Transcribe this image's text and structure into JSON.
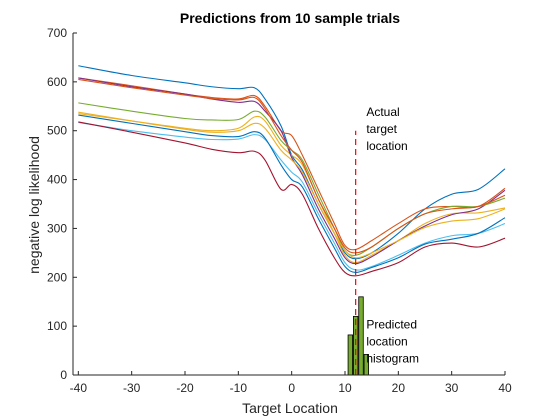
{
  "chart_data": {
    "type": "line",
    "title": "Predictions from 10 sample trials",
    "xlabel": "Target Location",
    "ylabel": "negative log likelihood",
    "xlim": [
      -41,
      40
    ],
    "ylim": [
      0,
      700
    ],
    "xticks": [
      -40,
      -30,
      -20,
      -10,
      0,
      10,
      20,
      30,
      40
    ],
    "yticks": [
      0,
      100,
      200,
      300,
      400,
      500,
      600,
      700
    ],
    "grid": false,
    "series": [
      {
        "color": "#0072BD",
        "points": [
          [
            -40,
            633
          ],
          [
            -30,
            613
          ],
          [
            -20,
            598
          ],
          [
            -15,
            590
          ],
          [
            -10,
            586
          ],
          [
            -7,
            588
          ],
          [
            -5,
            565
          ],
          [
            -2,
            510
          ],
          [
            0,
            450
          ],
          [
            2,
            420
          ],
          [
            5,
            350
          ],
          [
            8,
            290
          ],
          [
            10,
            250
          ],
          [
            12,
            238
          ],
          [
            15,
            250
          ],
          [
            20,
            290
          ],
          [
            25,
            340
          ],
          [
            30,
            370
          ],
          [
            35,
            380
          ],
          [
            40,
            422
          ]
        ]
      },
      {
        "color": "#D95319",
        "points": [
          [
            -40,
            608
          ],
          [
            -30,
            592
          ],
          [
            -20,
            575
          ],
          [
            -15,
            568
          ],
          [
            -10,
            565
          ],
          [
            -7,
            572
          ],
          [
            -5,
            550
          ],
          [
            -2,
            500
          ],
          [
            0,
            490
          ],
          [
            2,
            450
          ],
          [
            5,
            380
          ],
          [
            8,
            310
          ],
          [
            10,
            265
          ],
          [
            12,
            257
          ],
          [
            15,
            275
          ],
          [
            20,
            310
          ],
          [
            25,
            340
          ],
          [
            30,
            345
          ],
          [
            35,
            345
          ],
          [
            40,
            382
          ]
        ]
      },
      {
        "color": "#EDB120",
        "points": [
          [
            -40,
            535
          ],
          [
            -30,
            520
          ],
          [
            -20,
            505
          ],
          [
            -15,
            500
          ],
          [
            -10,
            505
          ],
          [
            -7,
            528
          ],
          [
            -5,
            520
          ],
          [
            -2,
            470
          ],
          [
            0,
            450
          ],
          [
            2,
            430
          ],
          [
            5,
            360
          ],
          [
            8,
            290
          ],
          [
            10,
            245
          ],
          [
            12,
            230
          ],
          [
            15,
            245
          ],
          [
            20,
            275
          ],
          [
            25,
            310
          ],
          [
            30,
            330
          ],
          [
            35,
            332
          ],
          [
            40,
            342
          ]
        ]
      },
      {
        "color": "#7E2F8E",
        "points": [
          [
            -40,
            608
          ],
          [
            -30,
            590
          ],
          [
            -20,
            575
          ],
          [
            -15,
            565
          ],
          [
            -10,
            558
          ],
          [
            -7,
            560
          ],
          [
            -5,
            540
          ],
          [
            -2,
            500
          ],
          [
            0,
            445
          ],
          [
            2,
            410
          ],
          [
            5,
            340
          ],
          [
            8,
            280
          ],
          [
            10,
            240
          ],
          [
            12,
            228
          ],
          [
            15,
            242
          ],
          [
            20,
            275
          ],
          [
            25,
            305
          ],
          [
            30,
            328
          ],
          [
            35,
            340
          ],
          [
            40,
            378
          ]
        ]
      },
      {
        "color": "#77AC30",
        "points": [
          [
            -40,
            557
          ],
          [
            -30,
            540
          ],
          [
            -20,
            525
          ],
          [
            -15,
            522
          ],
          [
            -10,
            523
          ],
          [
            -7,
            540
          ],
          [
            -5,
            528
          ],
          [
            -2,
            480
          ],
          [
            0,
            460
          ],
          [
            2,
            440
          ],
          [
            5,
            370
          ],
          [
            8,
            300
          ],
          [
            10,
            255
          ],
          [
            12,
            245
          ],
          [
            15,
            262
          ],
          [
            20,
            300
          ],
          [
            25,
            330
          ],
          [
            30,
            345
          ],
          [
            35,
            345
          ],
          [
            40,
            362
          ]
        ]
      },
      {
        "color": "#4DBEEE",
        "points": [
          [
            -40,
            517
          ],
          [
            -30,
            500
          ],
          [
            -20,
            487
          ],
          [
            -15,
            482
          ],
          [
            -10,
            483
          ],
          [
            -7,
            492
          ],
          [
            -5,
            482
          ],
          [
            -2,
            440
          ],
          [
            0,
            415
          ],
          [
            2,
            395
          ],
          [
            5,
            330
          ],
          [
            8,
            270
          ],
          [
            10,
            230
          ],
          [
            12,
            215
          ],
          [
            15,
            222
          ],
          [
            20,
            245
          ],
          [
            25,
            270
          ],
          [
            30,
            285
          ],
          [
            35,
            290
          ],
          [
            40,
            310
          ]
        ]
      },
      {
        "color": "#A2142F",
        "points": [
          [
            -40,
            518
          ],
          [
            -30,
            497
          ],
          [
            -20,
            475
          ],
          [
            -15,
            462
          ],
          [
            -10,
            455
          ],
          [
            -7,
            458
          ],
          [
            -5,
            440
          ],
          [
            -2,
            380
          ],
          [
            0,
            390
          ],
          [
            2,
            370
          ],
          [
            5,
            300
          ],
          [
            8,
            240
          ],
          [
            10,
            210
          ],
          [
            12,
            203
          ],
          [
            15,
            212
          ],
          [
            20,
            230
          ],
          [
            25,
            262
          ],
          [
            30,
            270
          ],
          [
            35,
            262
          ],
          [
            40,
            280
          ]
        ]
      },
      {
        "color": "#0072BD",
        "points": [
          [
            -40,
            532
          ],
          [
            -30,
            515
          ],
          [
            -20,
            498
          ],
          [
            -15,
            490
          ],
          [
            -10,
            488
          ],
          [
            -7,
            498
          ],
          [
            -5,
            485
          ],
          [
            -2,
            430
          ],
          [
            0,
            400
          ],
          [
            2,
            385
          ],
          [
            5,
            320
          ],
          [
            8,
            260
          ],
          [
            10,
            222
          ],
          [
            12,
            210
          ],
          [
            15,
            220
          ],
          [
            20,
            240
          ],
          [
            25,
            268
          ],
          [
            30,
            278
          ],
          [
            35,
            290
          ],
          [
            40,
            322
          ]
        ]
      },
      {
        "color": "#D95319",
        "points": [
          [
            -40,
            605
          ],
          [
            -30,
            588
          ],
          [
            -20,
            573
          ],
          [
            -15,
            566
          ],
          [
            -10,
            563
          ],
          [
            -7,
            568
          ],
          [
            -5,
            545
          ],
          [
            -2,
            490
          ],
          [
            0,
            460
          ],
          [
            2,
            435
          ],
          [
            5,
            360
          ],
          [
            8,
            300
          ],
          [
            10,
            260
          ],
          [
            12,
            250
          ],
          [
            15,
            262
          ],
          [
            20,
            300
          ],
          [
            25,
            330
          ],
          [
            30,
            340
          ],
          [
            35,
            345
          ],
          [
            40,
            368
          ]
        ]
      },
      {
        "color": "#EDB120",
        "points": [
          [
            -40,
            538
          ],
          [
            -30,
            520
          ],
          [
            -20,
            503
          ],
          [
            -15,
            497
          ],
          [
            -10,
            500
          ],
          [
            -7,
            515
          ],
          [
            -5,
            505
          ],
          [
            -2,
            460
          ],
          [
            0,
            440
          ],
          [
            2,
            415
          ],
          [
            5,
            350
          ],
          [
            8,
            290
          ],
          [
            10,
            255
          ],
          [
            12,
            240
          ],
          [
            15,
            250
          ],
          [
            20,
            275
          ],
          [
            25,
            302
          ],
          [
            30,
            315
          ],
          [
            35,
            320
          ],
          [
            40,
            340
          ]
        ]
      }
    ],
    "histogram": {
      "color": "#77AC30",
      "edge_color": "#000000",
      "bars": [
        [
          11,
          82
        ],
        [
          12,
          120
        ],
        [
          13,
          160
        ],
        [
          14,
          42
        ]
      ],
      "bin_width": 0.85
    },
    "reference_line": {
      "x": 12,
      "y_range": [
        0,
        500
      ],
      "color": "#FF0000",
      "dash": true
    },
    "annotations": [
      {
        "lines": [
          "Actual",
          "target",
          "location"
        ],
        "x": 14,
        "y": 530
      },
      {
        "lines": [
          "Predicted",
          "location",
          "histogram"
        ],
        "x": 14,
        "y": 95
      }
    ]
  }
}
